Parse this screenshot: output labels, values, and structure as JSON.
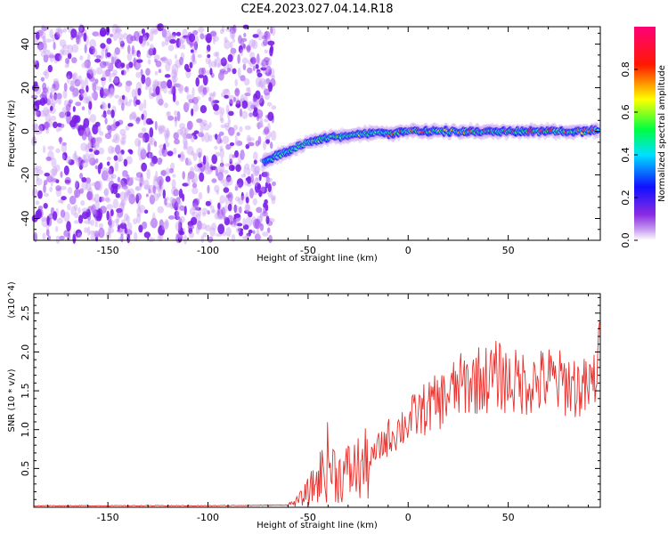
{
  "figure": {
    "title": "C2E4.2023.027.04.14.R18"
  },
  "chart_data": [
    {
      "type": "heatmap",
      "title": "C2E4.2023.027.04.14.R18",
      "xlabel": "Height of straight line (km)",
      "ylabel": "Frequency (Hz)",
      "xlim": [
        -187,
        96
      ],
      "ylim": [
        -50,
        48
      ],
      "x_ticks": [
        -150,
        -100,
        -50,
        0,
        50
      ],
      "y_ticks": [
        -40,
        -20,
        0,
        20,
        40
      ],
      "grid": false,
      "colorbar": {
        "label": "Normalized spectral amplitude",
        "range": [
          0,
          1
        ],
        "ticks": [
          "0.0",
          "0.2",
          "0.4",
          "0.6",
          "0.8"
        ],
        "colormap": [
          "#ffffff",
          "#8a2be2",
          "#0000ff",
          "#00ffff",
          "#00ff00",
          "#ffff00",
          "#ff0000",
          "#ff0080"
        ]
      },
      "noise_region_x": [
        -187,
        -67
      ],
      "signal_track": {
        "x": [
          -72,
          -60,
          -50,
          -40,
          -30,
          -20,
          -10,
          0,
          10,
          20,
          30,
          40,
          50,
          60,
          70,
          80,
          90,
          95
        ],
        "frequency": [
          -14,
          -9,
          -5,
          -3,
          -2,
          -1,
          -1,
          0,
          0,
          0,
          0,
          0,
          0,
          0,
          0,
          0,
          0,
          1
        ],
        "amplitude": [
          0.3,
          0.45,
          0.5,
          0.55,
          0.5,
          0.6,
          0.75,
          0.8,
          0.75,
          0.7,
          0.8,
          0.85,
          0.8,
          0.85,
          0.85,
          0.8,
          0.8,
          0.85
        ]
      }
    },
    {
      "type": "line",
      "title": "",
      "xlabel": "Height of straight line (km)",
      "ylabel": "SNR (10 * v/v)",
      "y_multiplier": "(x10^4)",
      "xlim": [
        -187,
        96
      ],
      "ylim": [
        0,
        2.75
      ],
      "x_ticks": [
        -150,
        -100,
        -50,
        0,
        50
      ],
      "y_ticks": [
        "0.5",
        "1.0",
        "1.5",
        "2.0",
        "2.5"
      ],
      "grid": false,
      "color": "#e8302c",
      "series": [
        {
          "x": [
            -187,
            -150,
            -100,
            -60,
            -55,
            -50,
            -45,
            -40,
            -35,
            -30,
            -25,
            -20,
            -15,
            -10,
            -5,
            0,
            5,
            10,
            15,
            20,
            25,
            30,
            35,
            40,
            45,
            50,
            55,
            60,
            65,
            70,
            75,
            80,
            85,
            90,
            93,
            95
          ],
          "y": [
            0.02,
            0.02,
            0.02,
            0.03,
            0.08,
            0.2,
            0.35,
            0.6,
            0.4,
            0.45,
            0.5,
            0.55,
            0.75,
            0.9,
            1.0,
            1.1,
            1.2,
            1.3,
            1.35,
            1.45,
            1.55,
            1.6,
            1.65,
            1.65,
            1.7,
            1.62,
            1.6,
            1.62,
            1.6,
            1.65,
            1.6,
            1.6,
            1.55,
            1.5,
            1.65,
            1.9
          ]
        }
      ]
    }
  ]
}
